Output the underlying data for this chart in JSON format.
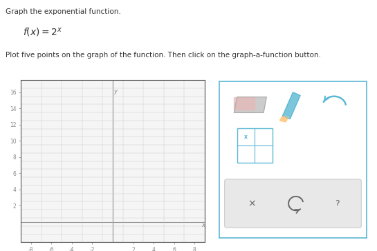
{
  "title_line1": "Graph the exponential function.",
  "formula": "$f(x) = 2^x$",
  "instruction": "Plot five points on the graph of the function. Then click on the graph-a-function button.",
  "xlim": [
    -9,
    9
  ],
  "ylim": [
    -2.5,
    17
  ],
  "xticks": [
    -8,
    -6,
    -4,
    -2,
    2,
    4,
    6,
    8
  ],
  "yticks": [
    2,
    4,
    6,
    8,
    10,
    12,
    14,
    16
  ],
  "grid_color": "#cccccc",
  "axis_color": "#888888",
  "tick_label_color": "#888888",
  "plot_bg": "#f5f5f5",
  "border_color": "#333333",
  "fig_bg": "#ffffff",
  "panel_border_color": "#5bb8d4",
  "icon_color": "#5bb8d4",
  "xlabel": "x",
  "ylabel": "y"
}
